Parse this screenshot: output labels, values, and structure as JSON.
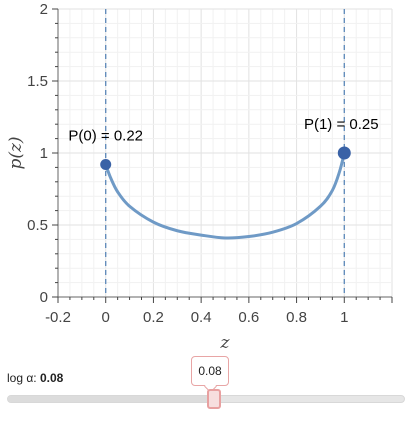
{
  "chart_data": {
    "type": "line",
    "xlabel": "z",
    "ylabel": "p(z)",
    "xlim": [
      -0.2,
      1.2
    ],
    "ylim": [
      0,
      2
    ],
    "x_ticks": [
      "-0.2",
      "0",
      "0.2",
      "0.4",
      "0.6",
      "0.8",
      "1"
    ],
    "y_ticks": [
      "0",
      "0.5",
      "1",
      "1.5",
      "2"
    ],
    "grid": true,
    "series": [
      {
        "color": "#6f9ac6",
        "x": [
          0.0,
          0.02,
          0.05,
          0.1,
          0.2,
          0.3,
          0.4,
          0.5,
          0.6,
          0.7,
          0.8,
          0.9,
          0.95,
          0.98,
          1.0
        ],
        "y": [
          0.92,
          0.83,
          0.73,
          0.63,
          0.52,
          0.46,
          0.43,
          0.41,
          0.42,
          0.45,
          0.51,
          0.63,
          0.74,
          0.87,
          1.0
        ]
      }
    ],
    "endpoints": [
      {
        "x": 0,
        "y": 0.92,
        "label": "P(0) = 0.22"
      },
      {
        "x": 1,
        "y": 1.0,
        "label": "P(1) = 0.25"
      }
    ],
    "vertical_lines": [
      0,
      1
    ],
    "point_color": "#3a62a6",
    "vline_color": "#5b87b8"
  },
  "slider": {
    "label": "log α: ",
    "value_text": "0.08",
    "tooltip": "0.08",
    "min": -2,
    "max": 2,
    "value": 0.08
  }
}
